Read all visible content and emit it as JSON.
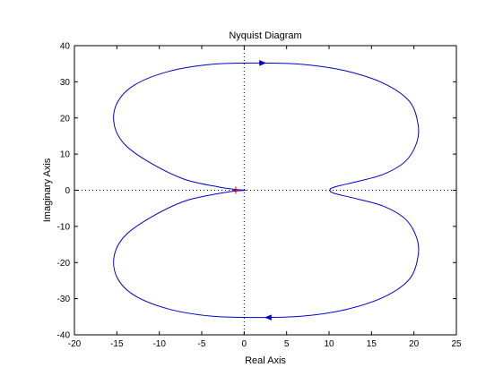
{
  "chart_data": {
    "type": "line",
    "title": "Nyquist Diagram",
    "xlabel": "Real Axis",
    "ylabel": "Imaginary Axis",
    "xlim": [
      -20,
      25
    ],
    "ylim": [
      -40,
      40
    ],
    "xticks": [
      -20,
      -15,
      -10,
      -5,
      0,
      5,
      10,
      15,
      20,
      25
    ],
    "yticks": [
      -40,
      -30,
      -20,
      -10,
      0,
      10,
      20,
      30,
      40
    ],
    "grid": false,
    "zero_lines": "dotted",
    "critical_point": [
      -1,
      0
    ],
    "series": [
      {
        "color": "#0000cc",
        "x": [
          -0.9,
          -3,
          -7,
          -11,
          -14,
          -15.3,
          -15,
          -13,
          -9,
          -4,
          1.5,
          7,
          12,
          16.5,
          19.5,
          20.5,
          20.3,
          19,
          16.5,
          13.5,
          11.3,
          10.3,
          10.1,
          10.3,
          11.3,
          13.5,
          16.5,
          19,
          20.3,
          20.5,
          19.5,
          16.5,
          12,
          7,
          1.5,
          -4,
          -9,
          -13,
          -15,
          -15.3,
          -14,
          -11,
          -7,
          -3,
          -0.9,
          0.2
        ],
        "y": [
          0.2,
          0.9,
          3,
          7.5,
          12.5,
          18,
          24,
          29,
          32.8,
          34.8,
          35.2,
          34.8,
          33,
          29.5,
          24.5,
          18,
          13,
          8,
          4.5,
          2.5,
          1.3,
          0.6,
          0,
          -0.6,
          -1.3,
          -2.5,
          -4.5,
          -8,
          -13,
          -18,
          -24.5,
          -29.5,
          -33,
          -34.8,
          -35.2,
          -34.8,
          -32.8,
          -29,
          -24,
          -18,
          -12.5,
          -7.5,
          -3,
          -0.9,
          -0.2,
          0
        ]
      }
    ],
    "arrows": [
      {
        "x": 2.2,
        "y": 35.2,
        "direction": "right"
      },
      {
        "x": 2.8,
        "y": -35.2,
        "direction": "left"
      }
    ],
    "line_color": "#0000cc",
    "axis_color": "#000000"
  }
}
